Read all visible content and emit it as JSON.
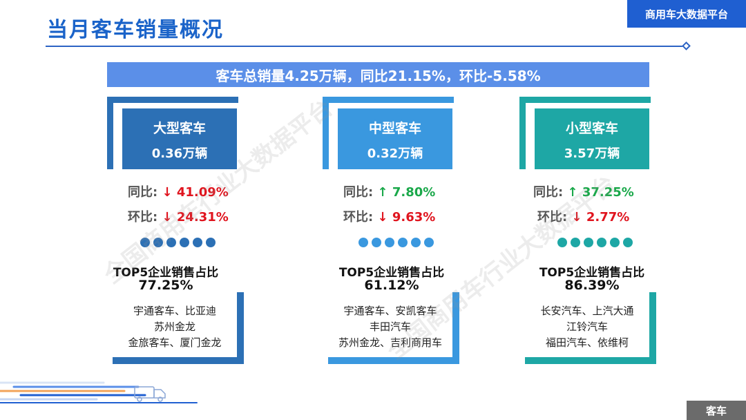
{
  "header": {
    "title": "当月客车销量概况",
    "brand": "商用车大数据平台"
  },
  "summary": "客车总销量4.25万辆，同比21.15%，环比-5.58%",
  "watermark": "全国商用车行业大数据平台",
  "footer_tag": "客车",
  "colors": {
    "title_blue": "#1a63c9",
    "banner": "#5b8fe8",
    "large": "#2c70b5",
    "medium": "#3a98df",
    "small": "#1ea7a5",
    "down": "#e0141e",
    "up": "#1aa84a"
  },
  "segments": [
    {
      "name": "大型客车",
      "volume": "0.36万辆",
      "yoy_label": "同比:",
      "yoy_arrow": "↓",
      "yoy_value": "41.09%",
      "yoy_dir": "down",
      "mom_label": "环比:",
      "mom_arrow": "↓",
      "mom_value": "24.31%",
      "mom_dir": "down",
      "top5_label": "TOP5企业销售占比",
      "top5_value": "77.25%",
      "companies": [
        "宇通客车、比亚迪",
        "苏州金龙",
        "金旅客车、厦门金龙"
      ]
    },
    {
      "name": "中型客车",
      "volume": "0.32万辆",
      "yoy_label": "同比:",
      "yoy_arrow": "↑",
      "yoy_value": "7.80%",
      "yoy_dir": "up",
      "mom_label": "环比:",
      "mom_arrow": "↓",
      "mom_value": "9.63%",
      "mom_dir": "down",
      "top5_label": "TOP5企业销售占比",
      "top5_value": "61.12%",
      "companies": [
        "宇通客车、安凯客车",
        "丰田汽车",
        "苏州金龙、吉利商用车"
      ]
    },
    {
      "name": "小型客车",
      "volume": "3.57万辆",
      "yoy_label": "同比:",
      "yoy_arrow": "↑",
      "yoy_value": "37.25%",
      "yoy_dir": "up",
      "mom_label": "环比:",
      "mom_arrow": "↓",
      "mom_value": "2.77%",
      "mom_dir": "down",
      "top5_label": "TOP5企业销售占比",
      "top5_value": "86.39%",
      "companies": [
        "长安汽车、上汽大通",
        "江铃汽车",
        "福田汽车、依维柯"
      ]
    }
  ]
}
